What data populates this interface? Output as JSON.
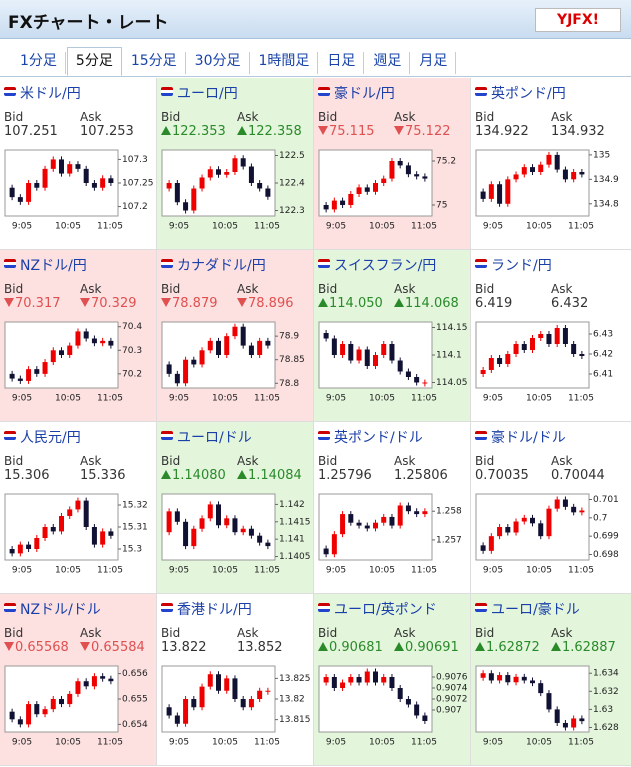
{
  "header": {
    "title": "FXチャート・レート",
    "logo": "YJFX!"
  },
  "tabs": {
    "items": [
      "1分足",
      "5分足",
      "15分足",
      "30分足",
      "1時間足",
      "日足",
      "週足",
      "月足"
    ],
    "selected": 1
  },
  "bid_label": "Bid",
  "ask_label": "Ask",
  "time_labels": [
    "9:05",
    "10:05",
    "11:05"
  ],
  "pairs": [
    {
      "name": "米ドル/円",
      "trend": "none",
      "bid": "107.251",
      "ask": "107.253",
      "ylim": [
        107.18,
        107.32
      ],
      "yticks": [
        107.2,
        107.25,
        107.3
      ],
      "closes": [
        107.24,
        107.22,
        107.21,
        107.25,
        107.24,
        107.28,
        107.3,
        107.27,
        107.29,
        107.28,
        107.25,
        107.24,
        107.26,
        107.25
      ]
    },
    {
      "name": "ユーロ/円",
      "trend": "up",
      "bid": "122.353",
      "ask": "122.358",
      "ylim": [
        122.28,
        122.52
      ],
      "yticks": [
        122.3,
        122.4,
        122.5
      ],
      "closes": [
        122.38,
        122.4,
        122.33,
        122.3,
        122.38,
        122.42,
        122.45,
        122.43,
        122.44,
        122.49,
        122.46,
        122.4,
        122.38,
        122.35
      ]
    },
    {
      "name": "豪ドル/円",
      "trend": "down",
      "bid": "75.115",
      "ask": "75.122",
      "ylim": [
        74.95,
        75.25
      ],
      "yticks": [
        75,
        75.2
      ],
      "closes": [
        75,
        74.98,
        75.02,
        75,
        75.05,
        75.08,
        75.06,
        75.1,
        75.12,
        75.2,
        75.18,
        75.14,
        75.13,
        75.12
      ]
    },
    {
      "name": "英ポンド/円",
      "trend": "none",
      "bid": "134.922",
      "ask": "134.932",
      "ylim": [
        134.75,
        135.02
      ],
      "yticks": [
        134.8,
        134.9,
        135
      ],
      "closes": [
        134.85,
        134.82,
        134.88,
        134.8,
        134.9,
        134.92,
        134.95,
        134.93,
        134.96,
        135,
        134.94,
        134.9,
        134.93,
        134.92
      ]
    },
    {
      "name": "NZドル/円",
      "trend": "down",
      "bid": "70.317",
      "ask": "70.329",
      "ylim": [
        70.14,
        70.42
      ],
      "yticks": [
        70.2,
        70.3,
        70.4
      ],
      "closes": [
        70.2,
        70.18,
        70.17,
        70.22,
        70.2,
        70.25,
        70.3,
        70.28,
        70.32,
        70.38,
        70.35,
        70.33,
        70.34,
        70.32
      ]
    },
    {
      "name": "カナダドル/円",
      "trend": "down",
      "bid": "78.879",
      "ask": "78.896",
      "ylim": [
        78.79,
        78.93
      ],
      "yticks": [
        78.8,
        78.85,
        78.9
      ],
      "closes": [
        78.84,
        78.82,
        78.8,
        78.85,
        78.84,
        78.87,
        78.89,
        78.86,
        78.9,
        78.92,
        78.88,
        78.86,
        78.89,
        78.88
      ]
    },
    {
      "name": "スイスフラン/円",
      "trend": "up",
      "bid": "114.050",
      "ask": "114.068",
      "ylim": [
        114.04,
        114.16
      ],
      "yticks": [
        114.05,
        114.1,
        114.15
      ],
      "closes": [
        114.14,
        114.13,
        114.1,
        114.12,
        114.09,
        114.11,
        114.08,
        114.1,
        114.12,
        114.09,
        114.07,
        114.06,
        114.05,
        114.05
      ]
    },
    {
      "name": "ランド/円",
      "trend": "none",
      "bid": "6.419",
      "ask": "6.432",
      "ylim": [
        6.403,
        6.436
      ],
      "yticks": [
        6.41,
        6.42,
        6.43
      ],
      "closes": [
        6.41,
        6.412,
        6.418,
        6.415,
        6.42,
        6.425,
        6.422,
        6.428,
        6.43,
        6.425,
        6.433,
        6.425,
        6.42,
        6.419
      ]
    },
    {
      "name": "人民元/円",
      "trend": "none",
      "bid": "15.306",
      "ask": "15.336",
      "ylim": [
        15.295,
        15.325
      ],
      "yticks": [
        15.3,
        15.31,
        15.32
      ],
      "closes": [
        15.3,
        15.298,
        15.302,
        15.3,
        15.305,
        15.31,
        15.308,
        15.315,
        15.318,
        15.322,
        15.31,
        15.302,
        15.308,
        15.306
      ]
    },
    {
      "name": "ユーロ/ドル",
      "trend": "up",
      "bid": "1.14080",
      "ask": "1.14084",
      "ylim": [
        1.1404,
        1.1423
      ],
      "yticks": [
        1.1405,
        1.141,
        1.1415,
        1.142
      ],
      "closes": [
        1.1412,
        1.1418,
        1.1415,
        1.1408,
        1.1413,
        1.1416,
        1.142,
        1.1414,
        1.1416,
        1.1412,
        1.1413,
        1.1411,
        1.1409,
        1.1408
      ]
    },
    {
      "name": "英ポンド/ドル",
      "trend": "none",
      "bid": "1.25796",
      "ask": "1.25806",
      "ylim": [
        1.2563,
        1.2586
      ],
      "yticks": [
        1.257,
        1.258
      ],
      "closes": [
        1.2567,
        1.2565,
        1.2572,
        1.2579,
        1.2576,
        1.2575,
        1.2574,
        1.2576,
        1.2578,
        1.2575,
        1.2582,
        1.258,
        1.2579,
        1.258
      ]
    },
    {
      "name": "豪ドル/ドル",
      "trend": "none",
      "bid": "0.70035",
      "ask": "0.70044",
      "ylim": [
        0.6977,
        0.7013
      ],
      "yticks": [
        0.698,
        0.699,
        0.7,
        0.701
      ],
      "closes": [
        0.6985,
        0.6982,
        0.699,
        0.6995,
        0.6992,
        0.6998,
        0.7,
        0.6997,
        0.699,
        0.7005,
        0.701,
        0.7006,
        0.7003,
        0.7004
      ]
    },
    {
      "name": "NZドル/ドル",
      "trend": "down",
      "bid": "0.65568",
      "ask": "0.65584",
      "ylim": [
        0.6537,
        0.6563
      ],
      "yticks": [
        0.654,
        0.655,
        0.656
      ],
      "closes": [
        0.6545,
        0.6542,
        0.654,
        0.6548,
        0.6544,
        0.6546,
        0.655,
        0.6548,
        0.6552,
        0.6557,
        0.6555,
        0.6559,
        0.6558,
        0.6557
      ]
    },
    {
      "name": "香港ドル/円",
      "trend": "none",
      "bid": "13.822",
      "ask": "13.852",
      "ylim": [
        13.812,
        13.828
      ],
      "yticks": [
        13.815,
        13.82,
        13.825
      ],
      "closes": [
        13.818,
        13.816,
        13.814,
        13.82,
        13.818,
        13.823,
        13.826,
        13.822,
        13.825,
        13.82,
        13.818,
        13.82,
        13.822,
        13.822
      ]
    },
    {
      "name": "ユーロ/英ポンド",
      "trend": "up",
      "bid": "0.90681",
      "ask": "0.90691",
      "ylim": [
        0.9066,
        0.9078
      ],
      "yticks": [
        0.907,
        0.9072,
        0.9074,
        0.9076
      ],
      "closes": [
        0.9075,
        0.9076,
        0.9074,
        0.9075,
        0.9076,
        0.9075,
        0.9077,
        0.9075,
        0.9076,
        0.9074,
        0.9072,
        0.9071,
        0.9069,
        0.9068
      ]
    },
    {
      "name": "ユーロ/豪ドル",
      "trend": "up",
      "bid": "1.62872",
      "ask": "1.62887",
      "ylim": [
        1.6275,
        1.6348
      ],
      "yticks": [
        1.628,
        1.63,
        1.632,
        1.634
      ],
      "closes": [
        1.6335,
        1.634,
        1.6332,
        1.6338,
        1.633,
        1.6336,
        1.6332,
        1.6329,
        1.6318,
        1.63,
        1.6285,
        1.628,
        1.629,
        1.6287
      ]
    }
  ]
}
